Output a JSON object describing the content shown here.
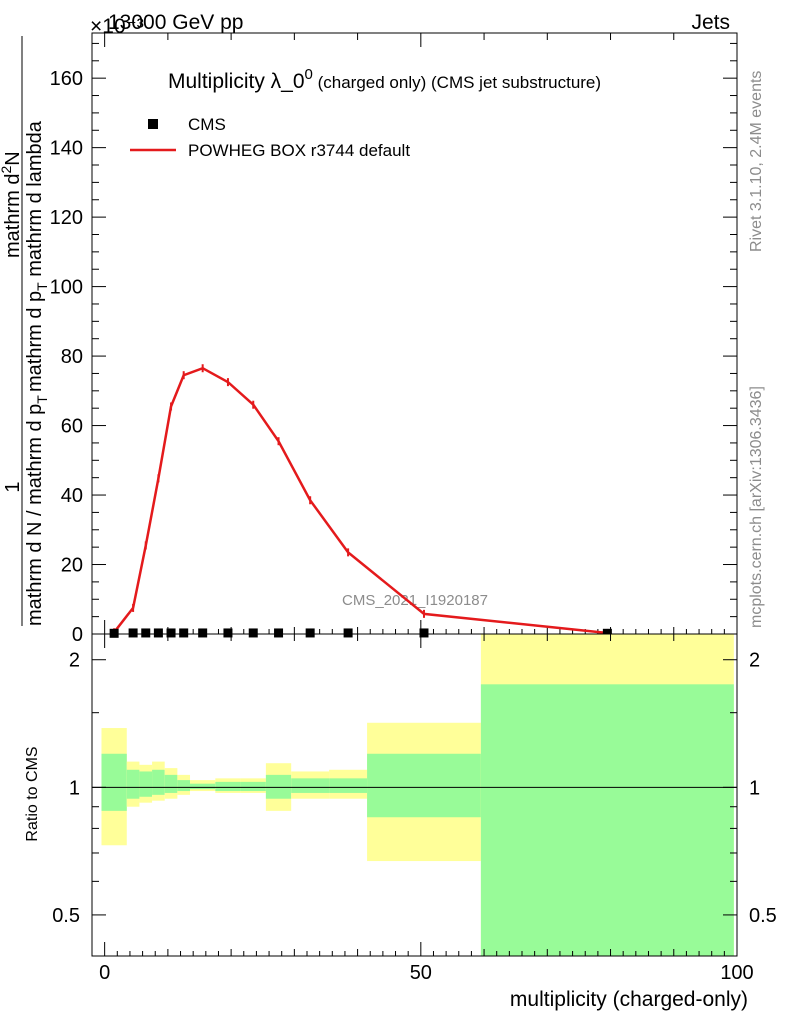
{
  "header": {
    "left": "13000 GeV pp",
    "right": "Jets",
    "exponent": "×10⁻³"
  },
  "side_labels": {
    "rivet": "Rivet 3.1.10,  2.4M events",
    "mcplots": "mcplots.cern.ch [arXiv:1306.3436]"
  },
  "chart_data": [
    {
      "id": "main",
      "type": "line",
      "title": "Multiplicity λ_0⁰ (charged only) (CMS jet substructure)",
      "title_main": "Multiplicity λ_0",
      "title_sup": "0",
      "title_rest": " (charged only) (CMS jet substructure)",
      "watermark": "CMS_2021_I1920187",
      "ylabel_top": "1",
      "ylabel_left_line1": "mathrm d N / mathrm d p",
      "ylabel_left_line2": "mathrm d p",
      "ylabel_numerator": "mathrm d",
      "ylabel_numerator_sup": "2",
      "ylabel_numerator_rest": "N",
      "ylabel_denominator": "mathrm d p",
      "ylabel_denominator_sub": "T",
      "ylabel_denominator_rest": " mathrm d lambda",
      "ylabel_frac_left": "mathrm d N / mathrm d p",
      "ylabel_frac_left_sub": "T",
      "xlim": [
        -2,
        100
      ],
      "ylim": [
        0,
        173
      ],
      "y_unit_exponent": "-3",
      "yticks": [
        0,
        20,
        40,
        60,
        80,
        100,
        120,
        140,
        160
      ],
      "legend_placement": "top-left",
      "series": [
        {
          "name": "CMS",
          "style": "markers",
          "color": "#000000",
          "x": [
            1.5,
            4.5,
            6.5,
            8.5,
            10.5,
            12.5,
            15.5,
            19.5,
            23.5,
            27.5,
            32.5,
            38.5,
            50.5,
            79.5
          ],
          "y": [
            0.2,
            0.3,
            0.3,
            0.3,
            0.3,
            0.3,
            0.3,
            0.3,
            0.3,
            0.3,
            0.3,
            0.3,
            0.3,
            0.2
          ]
        },
        {
          "name": "POWHEG BOX r3744 default",
          "style": "line",
          "color": "#e41a1c",
          "x": [
            1.5,
            4.5,
            6.5,
            8.5,
            10.5,
            12.5,
            15.5,
            19.5,
            23.5,
            27.5,
            32.5,
            38.5,
            50.5,
            79.5
          ],
          "y": [
            0.5,
            7.5,
            25.5,
            44.8,
            65.5,
            74.5,
            76.5,
            72.5,
            66.0,
            55.5,
            38.5,
            23.5,
            5.8,
            0.3
          ]
        }
      ]
    },
    {
      "id": "ratio",
      "type": "area",
      "ylabel": "Ratio to CMS",
      "xlabel": "multiplicity (charged-only)",
      "xlim": [
        -2,
        100
      ],
      "ylim": [
        0.4,
        2.3
      ],
      "log_y": true,
      "yticks": [
        0.5,
        1,
        2
      ],
      "xticks": [
        0,
        50,
        100
      ],
      "bins": [
        {
          "lo": -0.5,
          "hi": 3.5,
          "green_lo": 0.88,
          "green_hi": 1.2,
          "yellow_lo": 0.73,
          "yellow_hi": 1.38
        },
        {
          "lo": 3.5,
          "hi": 5.5,
          "green_lo": 0.94,
          "green_hi": 1.1,
          "yellow_lo": 0.9,
          "yellow_hi": 1.15
        },
        {
          "lo": 5.5,
          "hi": 7.5,
          "green_lo": 0.95,
          "green_hi": 1.09,
          "yellow_lo": 0.92,
          "yellow_hi": 1.13
        },
        {
          "lo": 7.5,
          "hi": 9.5,
          "green_lo": 0.96,
          "green_hi": 1.1,
          "yellow_lo": 0.93,
          "yellow_hi": 1.15
        },
        {
          "lo": 9.5,
          "hi": 11.5,
          "green_lo": 0.97,
          "green_hi": 1.07,
          "yellow_lo": 0.94,
          "yellow_hi": 1.11
        },
        {
          "lo": 11.5,
          "hi": 13.5,
          "green_lo": 0.98,
          "green_hi": 1.04,
          "yellow_lo": 0.96,
          "yellow_hi": 1.07
        },
        {
          "lo": 13.5,
          "hi": 17.5,
          "green_lo": 0.99,
          "green_hi": 1.02,
          "yellow_lo": 0.98,
          "yellow_hi": 1.04
        },
        {
          "lo": 17.5,
          "hi": 21.5,
          "green_lo": 0.98,
          "green_hi": 1.03,
          "yellow_lo": 0.97,
          "yellow_hi": 1.05
        },
        {
          "lo": 21.5,
          "hi": 25.5,
          "green_lo": 0.98,
          "green_hi": 1.03,
          "yellow_lo": 0.97,
          "yellow_hi": 1.05
        },
        {
          "lo": 25.5,
          "hi": 29.5,
          "green_lo": 0.94,
          "green_hi": 1.07,
          "yellow_lo": 0.88,
          "yellow_hi": 1.14
        },
        {
          "lo": 29.5,
          "hi": 35.5,
          "green_lo": 0.97,
          "green_hi": 1.05,
          "yellow_lo": 0.94,
          "yellow_hi": 1.09
        },
        {
          "lo": 35.5,
          "hi": 41.5,
          "green_lo": 0.97,
          "green_hi": 1.05,
          "yellow_lo": 0.94,
          "yellow_hi": 1.1
        },
        {
          "lo": 41.5,
          "hi": 59.5,
          "green_lo": 0.85,
          "green_hi": 1.2,
          "yellow_lo": 0.67,
          "yellow_hi": 1.42
        },
        {
          "lo": 59.5,
          "hi": 99.5,
          "green_lo": 0.36,
          "green_hi": 1.75,
          "yellow_lo": 0.36,
          "yellow_hi": 2.3
        }
      ]
    }
  ],
  "colors": {
    "green": "#98fb98",
    "yellow": "#ffff99",
    "mc": "#e41a1c",
    "data": "#000000"
  }
}
